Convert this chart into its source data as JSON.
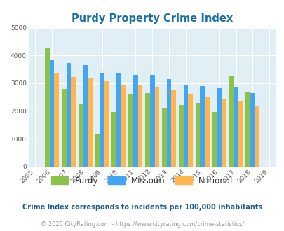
{
  "title": "Purdy Property Crime Index",
  "years": [
    2005,
    2006,
    2007,
    2008,
    2009,
    2010,
    2011,
    2012,
    2013,
    2014,
    2015,
    2016,
    2017,
    2018,
    2019
  ],
  "purdy": [
    0,
    4250,
    2800,
    2230,
    1150,
    1950,
    2620,
    2650,
    2100,
    2200,
    2300,
    1950,
    3260,
    2700,
    0
  ],
  "missouri": [
    0,
    3820,
    3720,
    3650,
    3370,
    3350,
    3300,
    3300,
    3150,
    2950,
    2900,
    2820,
    2850,
    2630,
    0
  ],
  "national": [
    0,
    3350,
    3220,
    3200,
    3060,
    2950,
    2920,
    2870,
    2730,
    2600,
    2490,
    2450,
    2360,
    2190,
    0
  ],
  "purdy_color": "#8bc34a",
  "missouri_color": "#42a5f5",
  "national_color": "#ffb74d",
  "bg_color": "#e0eff5",
  "ylim": [
    0,
    5000
  ],
  "footnote1": "Crime Index corresponds to incidents per 100,000 inhabitants",
  "footnote2": "© 2025 CityRating.com - https://www.cityrating.com/crime-statistics/",
  "title_color": "#1a6fa8",
  "footnote1_color": "#1a5a8a",
  "footnote2_color": "#999999",
  "legend_label_color": "#333333"
}
